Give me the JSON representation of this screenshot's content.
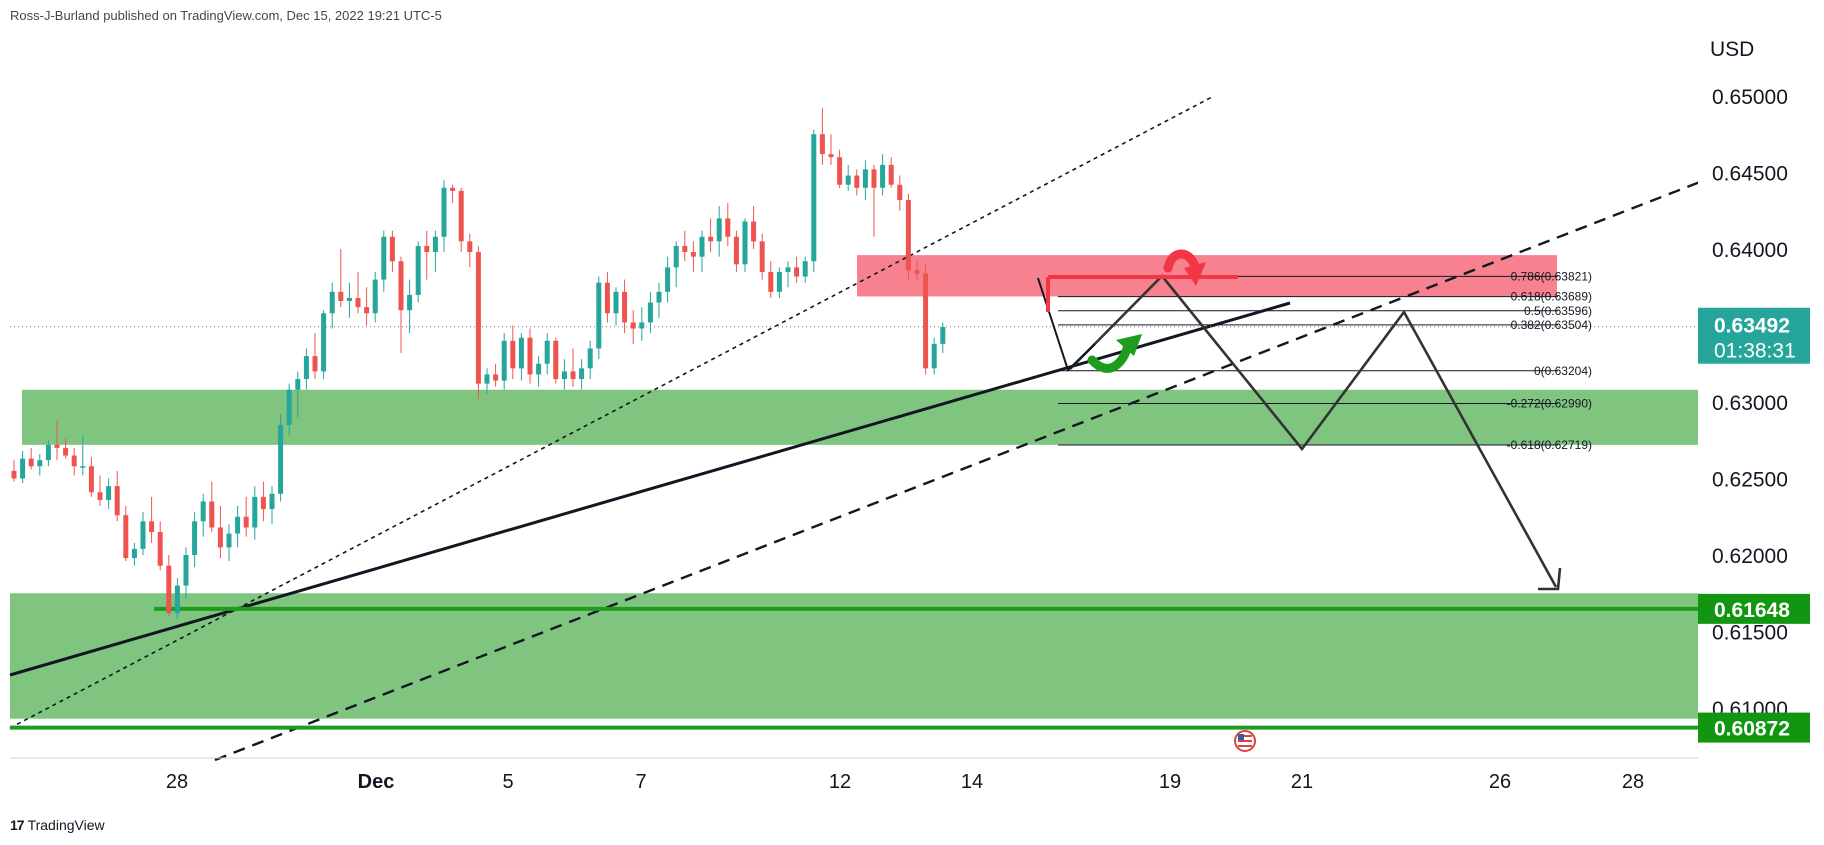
{
  "header": {
    "publish_line": "Ross-J-Burland published on TradingView.com, Dec 15, 2022 19:21 UTC-5"
  },
  "footer": {
    "brand": "TradingView",
    "logo_glyph": "17"
  },
  "colors": {
    "up": "#26a69a",
    "down": "#ef5350",
    "green_zone": "#7fc47f",
    "red_zone": "#f7818e",
    "green_line": "#1e9c1e",
    "badge_green": "#129612",
    "price_badge": "#26a69a"
  },
  "chart_data": {
    "type": "candlestick",
    "currency": "USD",
    "y_ticks": [
      "0.65000",
      "0.64500",
      "0.64000",
      "0.63000",
      "0.62500",
      "0.62000",
      "0.61500",
      "0.61000"
    ],
    "x_ticks": [
      "28",
      "Dec",
      "5",
      "7",
      "12",
      "14",
      "19",
      "21",
      "26",
      "28"
    ],
    "last_price": "0.63492",
    "countdown": "01:38:31",
    "levels": [
      "0.61648",
      "0.60872"
    ],
    "fib_labels": [
      "0.786(0.63821)",
      "0.618(0.63689)",
      "0.5(0.63596)",
      "0.382(0.63504)",
      "0(0.63204)",
      "-0.272(0.62990)",
      "-0.618(0.62719)"
    ],
    "fib_values": [
      0.63821,
      0.63689,
      0.63596,
      0.63504,
      0.63204,
      0.6299,
      0.62719
    ],
    "zones": [
      {
        "color": "green",
        "from": 0.6272,
        "to": 0.6308
      },
      {
        "color": "green",
        "from": 0.6093,
        "to": 0.6175
      },
      {
        "color": "red",
        "from": 0.6369,
        "to": 0.6396
      }
    ],
    "candles": [
      [
        0.6255,
        0.6262,
        0.6248,
        0.625
      ],
      [
        0.625,
        0.6268,
        0.6247,
        0.6263
      ],
      [
        0.6263,
        0.627,
        0.6256,
        0.6258
      ],
      [
        0.6258,
        0.6266,
        0.6252,
        0.6262
      ],
      [
        0.6262,
        0.6275,
        0.6258,
        0.6272
      ],
      [
        0.6272,
        0.6288,
        0.6262,
        0.627
      ],
      [
        0.627,
        0.6276,
        0.6263,
        0.6265
      ],
      [
        0.6265,
        0.627,
        0.6252,
        0.6258
      ],
      [
        0.6258,
        0.6278,
        0.6252,
        0.6258
      ],
      [
        0.6258,
        0.6264,
        0.6238,
        0.6241
      ],
      [
        0.6241,
        0.6252,
        0.6232,
        0.6236
      ],
      [
        0.6236,
        0.625,
        0.623,
        0.6245
      ],
      [
        0.6245,
        0.6255,
        0.6222,
        0.6226
      ],
      [
        0.6226,
        0.6232,
        0.6196,
        0.6198
      ],
      [
        0.6198,
        0.6208,
        0.6193,
        0.6204
      ],
      [
        0.6204,
        0.6228,
        0.62,
        0.6222
      ],
      [
        0.6222,
        0.6238,
        0.6208,
        0.6215
      ],
      [
        0.6215,
        0.6222,
        0.619,
        0.6193
      ],
      [
        0.6193,
        0.62,
        0.616,
        0.6162
      ],
      [
        0.6162,
        0.6185,
        0.6158,
        0.618
      ],
      [
        0.618,
        0.6205,
        0.6172,
        0.62
      ],
      [
        0.62,
        0.6228,
        0.6192,
        0.6222
      ],
      [
        0.6222,
        0.624,
        0.6212,
        0.6235
      ],
      [
        0.6235,
        0.6248,
        0.6215,
        0.6218
      ],
      [
        0.6218,
        0.6232,
        0.6198,
        0.6205
      ],
      [
        0.6205,
        0.622,
        0.6196,
        0.6214
      ],
      [
        0.6214,
        0.6232,
        0.6205,
        0.6225
      ],
      [
        0.6225,
        0.6238,
        0.6212,
        0.6218
      ],
      [
        0.6218,
        0.6245,
        0.621,
        0.6238
      ],
      [
        0.6238,
        0.6248,
        0.6222,
        0.623
      ],
      [
        0.623,
        0.6245,
        0.622,
        0.624
      ],
      [
        0.624,
        0.6292,
        0.6235,
        0.6285
      ],
      [
        0.6285,
        0.6312,
        0.6278,
        0.6308
      ],
      [
        0.6308,
        0.632,
        0.629,
        0.6315
      ],
      [
        0.6315,
        0.6335,
        0.6308,
        0.633
      ],
      [
        0.633,
        0.6345,
        0.6315,
        0.632
      ],
      [
        0.632,
        0.636,
        0.6315,
        0.6358
      ],
      [
        0.6358,
        0.6378,
        0.6348,
        0.6372
      ],
      [
        0.6372,
        0.64,
        0.6362,
        0.6366
      ],
      [
        0.6366,
        0.6378,
        0.6355,
        0.6368
      ],
      [
        0.6368,
        0.6385,
        0.6358,
        0.6362
      ],
      [
        0.6362,
        0.6375,
        0.635,
        0.6358
      ],
      [
        0.6358,
        0.6385,
        0.6352,
        0.638
      ],
      [
        0.638,
        0.6412,
        0.6372,
        0.6408
      ],
      [
        0.6408,
        0.6412,
        0.6385,
        0.6392
      ],
      [
        0.6392,
        0.6395,
        0.6332,
        0.636
      ],
      [
        0.636,
        0.638,
        0.6345,
        0.637
      ],
      [
        0.637,
        0.6405,
        0.6365,
        0.6402
      ],
      [
        0.6402,
        0.6412,
        0.638,
        0.6398
      ],
      [
        0.6398,
        0.6412,
        0.6385,
        0.6408
      ],
      [
        0.6408,
        0.6445,
        0.6398,
        0.644
      ],
      [
        0.644,
        0.6442,
        0.643,
        0.6438
      ],
      [
        0.6438,
        0.644,
        0.6398,
        0.6405
      ],
      [
        0.6405,
        0.641,
        0.6388,
        0.6398
      ],
      [
        0.6398,
        0.6402,
        0.6302,
        0.6312
      ],
      [
        0.6312,
        0.6322,
        0.6305,
        0.6318
      ],
      [
        0.6318,
        0.6325,
        0.631,
        0.6314
      ],
      [
        0.6314,
        0.6345,
        0.6308,
        0.634
      ],
      [
        0.634,
        0.635,
        0.6315,
        0.6322
      ],
      [
        0.6322,
        0.6345,
        0.6314,
        0.6342
      ],
      [
        0.6342,
        0.6348,
        0.6312,
        0.6318
      ],
      [
        0.6318,
        0.633,
        0.631,
        0.6325
      ],
      [
        0.6325,
        0.6345,
        0.6318,
        0.634
      ],
      [
        0.634,
        0.6342,
        0.6312,
        0.6315
      ],
      [
        0.6315,
        0.6328,
        0.6308,
        0.632
      ],
      [
        0.632,
        0.6335,
        0.631,
        0.6315
      ],
      [
        0.6315,
        0.6328,
        0.6308,
        0.6322
      ],
      [
        0.6322,
        0.634,
        0.6315,
        0.6335
      ],
      [
        0.6335,
        0.6382,
        0.6328,
        0.6378
      ],
      [
        0.6378,
        0.6385,
        0.6352,
        0.6358
      ],
      [
        0.6358,
        0.6375,
        0.635,
        0.6372
      ],
      [
        0.6372,
        0.638,
        0.6345,
        0.6352
      ],
      [
        0.6352,
        0.636,
        0.6338,
        0.6348
      ],
      [
        0.6348,
        0.6362,
        0.634,
        0.6352
      ],
      [
        0.6352,
        0.6372,
        0.6345,
        0.6365
      ],
      [
        0.6365,
        0.6378,
        0.6355,
        0.6372
      ],
      [
        0.6372,
        0.6395,
        0.6365,
        0.6388
      ],
      [
        0.6388,
        0.6405,
        0.6375,
        0.6402
      ],
      [
        0.6402,
        0.6412,
        0.6392,
        0.6398
      ],
      [
        0.6398,
        0.6405,
        0.6385,
        0.6395
      ],
      [
        0.6395,
        0.6412,
        0.6385,
        0.6408
      ],
      [
        0.6408,
        0.642,
        0.6398,
        0.6405
      ],
      [
        0.6405,
        0.6428,
        0.6395,
        0.642
      ],
      [
        0.642,
        0.643,
        0.6402,
        0.6408
      ],
      [
        0.6408,
        0.6412,
        0.6385,
        0.639
      ],
      [
        0.639,
        0.642,
        0.6385,
        0.6418
      ],
      [
        0.6418,
        0.6428,
        0.64,
        0.6405
      ],
      [
        0.6405,
        0.641,
        0.638,
        0.6385
      ],
      [
        0.6385,
        0.6392,
        0.6368,
        0.6372
      ],
      [
        0.6372,
        0.6388,
        0.6368,
        0.6385
      ],
      [
        0.6385,
        0.6392,
        0.6375,
        0.6388
      ],
      [
        0.6388,
        0.6395,
        0.6378,
        0.6382
      ],
      [
        0.6382,
        0.6395,
        0.6378,
        0.6392
      ],
      [
        0.6392,
        0.6478,
        0.6385,
        0.6475
      ],
      [
        0.6475,
        0.6492,
        0.6455,
        0.6462
      ],
      [
        0.6462,
        0.6475,
        0.6455,
        0.646
      ],
      [
        0.646,
        0.6465,
        0.644,
        0.6442
      ],
      [
        0.6442,
        0.6455,
        0.6438,
        0.6448
      ],
      [
        0.6448,
        0.6452,
        0.6435,
        0.644
      ],
      [
        0.644,
        0.6458,
        0.6432,
        0.6452
      ],
      [
        0.6452,
        0.6455,
        0.6408,
        0.644
      ],
      [
        0.644,
        0.6462,
        0.6435,
        0.6455
      ],
      [
        0.6455,
        0.646,
        0.644,
        0.6442
      ],
      [
        0.6442,
        0.6448,
        0.6425,
        0.6432
      ],
      [
        0.6432,
        0.6436,
        0.638,
        0.6386
      ],
      [
        0.6386,
        0.6392,
        0.638,
        0.6384
      ],
      [
        0.6384,
        0.639,
        0.6318,
        0.6322
      ],
      [
        0.6322,
        0.6342,
        0.6318,
        0.6338
      ],
      [
        0.6338,
        0.6352,
        0.6332,
        0.6349
      ]
    ]
  }
}
